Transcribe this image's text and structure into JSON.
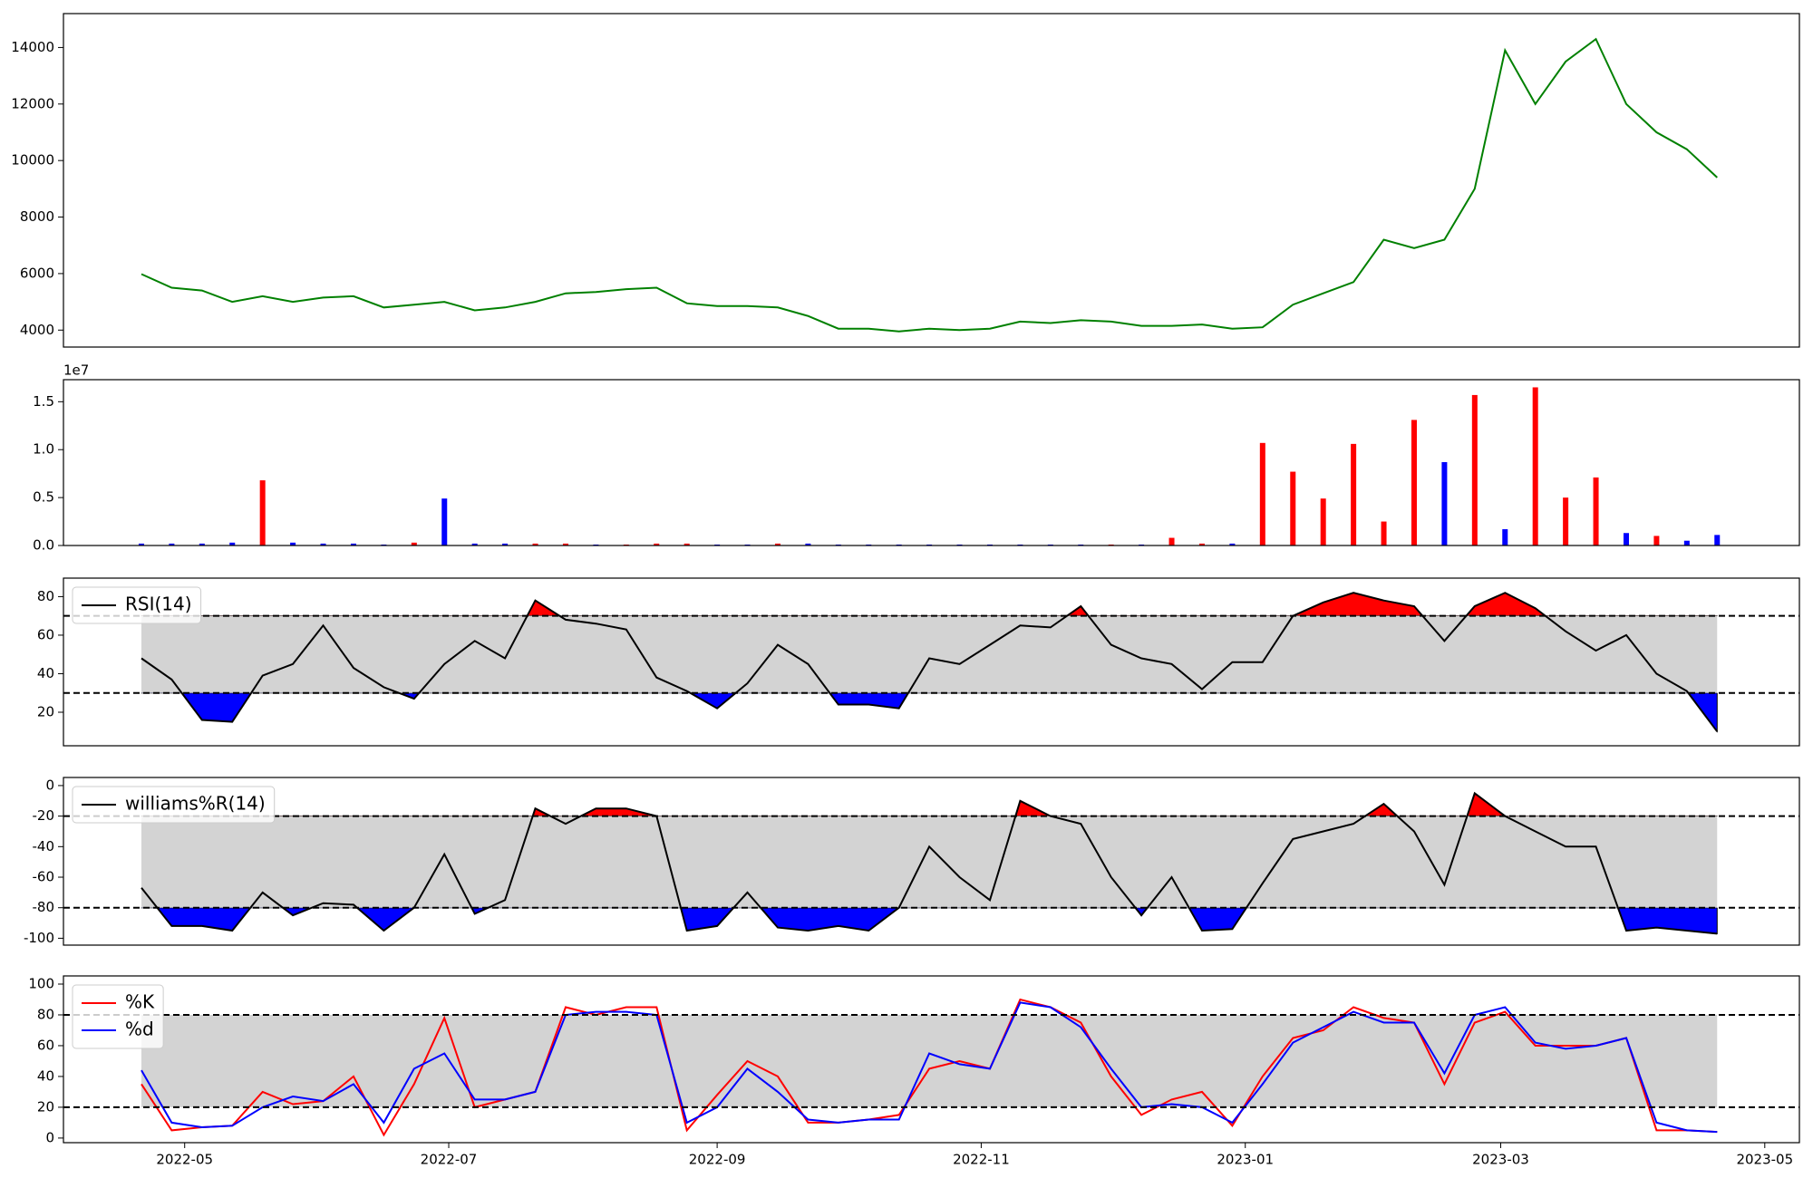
{
  "chart_data": [
    {
      "type": "line",
      "color": "green",
      "x": [
        -10,
        -3,
        4,
        11,
        18,
        25,
        32,
        39,
        46,
        53,
        60,
        67,
        74,
        81,
        88,
        95,
        102,
        109,
        116,
        123,
        130,
        137,
        144,
        151,
        158,
        165,
        172,
        179,
        186,
        193,
        200,
        207,
        214,
        221,
        228,
        235,
        242,
        249,
        256,
        263,
        270,
        277,
        284,
        291,
        298,
        305,
        312,
        319,
        326,
        333,
        340,
        347,
        354
      ],
      "values": [
        5980,
        5500,
        5400,
        5000,
        5200,
        5000,
        5150,
        5200,
        4800,
        4900,
        5000,
        4700,
        4800,
        5000,
        5300,
        5350,
        5450,
        5500,
        4950,
        4850,
        4850,
        4800,
        4500,
        4050,
        4050,
        3950,
        4050,
        4000,
        4050,
        4300,
        4250,
        4350,
        4300,
        4150,
        4150,
        4200,
        4050,
        4100,
        4900,
        5300,
        5700,
        7200,
        6900,
        7200,
        9000,
        13900,
        12000,
        13500,
        14300,
        12000,
        11000,
        10400,
        9400
      ],
      "xlim": [
        -28,
        373
      ],
      "ylim": [
        3400,
        15200
      ],
      "yticks": [
        4000,
        6000,
        8000,
        10000,
        12000,
        14000
      ]
    },
    {
      "type": "bar",
      "offset_label": "1e7",
      "x": [
        -10,
        -3,
        4,
        11,
        18,
        25,
        32,
        39,
        46,
        53,
        60,
        67,
        74,
        81,
        88,
        95,
        102,
        109,
        116,
        123,
        130,
        137,
        144,
        151,
        158,
        165,
        172,
        179,
        186,
        193,
        200,
        207,
        214,
        221,
        228,
        235,
        242,
        249,
        256,
        263,
        270,
        277,
        284,
        291,
        298,
        305,
        312,
        319,
        326,
        333,
        340,
        347,
        354
      ],
      "values": [
        0.02,
        0.02,
        0.02,
        0.03,
        0.68,
        0.03,
        0.02,
        0.02,
        0.01,
        0.03,
        0.49,
        0.02,
        0.02,
        0.02,
        0.02,
        0.01,
        0.01,
        0.02,
        0.02,
        0.01,
        0.01,
        0.02,
        0.02,
        0.01,
        0.01,
        0.01,
        0.01,
        0.01,
        0.01,
        0.01,
        0.01,
        0.01,
        0.01,
        0.01,
        0.08,
        0.02,
        0.02,
        1.07,
        0.77,
        0.49,
        1.06,
        0.25,
        1.31,
        0.87,
        1.57,
        0.17,
        1.65,
        0.5,
        0.71,
        0.13,
        0.1,
        0.05,
        0.11
      ],
      "colors": [
        "blue",
        "blue",
        "blue",
        "blue",
        "red",
        "blue",
        "blue",
        "blue",
        "blue",
        "red",
        "blue",
        "blue",
        "blue",
        "red",
        "red",
        "blue",
        "red",
        "red",
        "red",
        "blue",
        "blue",
        "red",
        "blue",
        "blue",
        "blue",
        "blue",
        "blue",
        "blue",
        "blue",
        "blue",
        "blue",
        "blue",
        "red",
        "blue",
        "red",
        "red",
        "blue",
        "red",
        "red",
        "red",
        "red",
        "red",
        "red",
        "blue",
        "red",
        "blue",
        "red",
        "red",
        "red",
        "blue",
        "red",
        "blue",
        "blue"
      ],
      "xlim": [
        -28,
        373
      ],
      "ylim": [
        0,
        1.73
      ],
      "yticks": [
        {
          "value": 0,
          "label": "0.0"
        },
        {
          "value": 0.5,
          "label": "0.5"
        },
        {
          "value": 1,
          "label": "1.0"
        },
        {
          "value": 1.5,
          "label": "1.5"
        }
      ]
    },
    {
      "type": "line",
      "x": [
        -10,
        -3,
        4,
        11,
        18,
        25,
        32,
        39,
        46,
        53,
        60,
        67,
        74,
        81,
        88,
        95,
        102,
        109,
        116,
        123,
        130,
        137,
        144,
        151,
        158,
        165,
        172,
        179,
        186,
        193,
        200,
        207,
        214,
        221,
        228,
        235,
        242,
        249,
        256,
        263,
        270,
        277,
        284,
        291,
        298,
        305,
        312,
        319,
        326,
        333,
        340,
        347,
        354
      ],
      "series": [
        {
          "name": "RSI(14)",
          "color": "black",
          "values": [
            48,
            37,
            16,
            15,
            39,
            45,
            65,
            43,
            33,
            27,
            45,
            57,
            48,
            78,
            68,
            66,
            63,
            38,
            31,
            22,
            35,
            55,
            45,
            24,
            24,
            22,
            48,
            45,
            55,
            65,
            64,
            75,
            55,
            48,
            45,
            32,
            46,
            46,
            70,
            77,
            82,
            78,
            75,
            57,
            75,
            82,
            74,
            62,
            52,
            60,
            40,
            31,
            10
          ]
        }
      ],
      "hlines": [
        30,
        70
      ],
      "band_color": "lightgray",
      "fill_above_color": "red",
      "fill_below_color": "blue",
      "xlim": [
        -28,
        373
      ],
      "ylim": [
        2.6,
        89.6
      ],
      "yticks": [
        20,
        40,
        60,
        80
      ]
    },
    {
      "type": "line",
      "x": [
        -10,
        -3,
        4,
        11,
        18,
        25,
        32,
        39,
        46,
        53,
        60,
        67,
        74,
        81,
        88,
        95,
        102,
        109,
        116,
        123,
        130,
        137,
        144,
        151,
        158,
        165,
        172,
        179,
        186,
        193,
        200,
        207,
        214,
        221,
        228,
        235,
        242,
        249,
        256,
        263,
        270,
        277,
        284,
        291,
        298,
        305,
        312,
        319,
        326,
        333,
        340,
        347,
        354
      ],
      "series": [
        {
          "name": "williams%R(14)",
          "color": "black",
          "values": [
            -67,
            -92,
            -92,
            -95,
            -70,
            -85,
            -77,
            -78,
            -95,
            -80,
            -45,
            -84,
            -75,
            -15,
            -25,
            -15,
            -15,
            -20,
            -95,
            -92,
            -70,
            -93,
            -95,
            -92,
            -95,
            -80,
            -40,
            -60,
            -75,
            -10,
            -20,
            -25,
            -60,
            -85,
            -60,
            -95,
            -94,
            -64,
            -35,
            -30,
            -25,
            -12,
            -30,
            -65,
            -5,
            -20,
            -30,
            -40,
            -40,
            -95,
            -93,
            -95,
            -97
          ]
        }
      ],
      "hlines": [
        -80,
        -20
      ],
      "band_color": "lightgray",
      "fill_above_color": "red",
      "fill_below_color": "blue",
      "xlim": [
        -28,
        373
      ],
      "ylim": [
        -104.5,
        5.3
      ],
      "yticks": [
        -100,
        -80,
        -60,
        -40,
        -20,
        0
      ]
    },
    {
      "type": "line",
      "x": [
        -10,
        -3,
        4,
        11,
        18,
        25,
        32,
        39,
        46,
        53,
        60,
        67,
        74,
        81,
        88,
        95,
        102,
        109,
        116,
        123,
        130,
        137,
        144,
        151,
        158,
        165,
        172,
        179,
        186,
        193,
        200,
        207,
        214,
        221,
        228,
        235,
        242,
        249,
        256,
        263,
        270,
        277,
        284,
        291,
        298,
        305,
        312,
        319,
        326,
        333,
        340,
        347,
        354
      ],
      "series": [
        {
          "name": "%K",
          "color": "red",
          "values": [
            35,
            5,
            7,
            8,
            30,
            22,
            24,
            40,
            2,
            35,
            78,
            20,
            25,
            30,
            85,
            80,
            85,
            85,
            5,
            28,
            50,
            40,
            10,
            10,
            12,
            15,
            45,
            50,
            45,
            90,
            85,
            75,
            40,
            15,
            25,
            30,
            8,
            40,
            65,
            70,
            85,
            78,
            75,
            35,
            75,
            82,
            60,
            60,
            60,
            65,
            5,
            5,
            4
          ]
        },
        {
          "name": "%d",
          "color": "blue",
          "values": [
            44,
            10,
            7,
            8,
            20,
            27,
            24,
            35,
            10,
            45,
            55,
            25,
            25,
            30,
            80,
            82,
            82,
            80,
            10,
            20,
            45,
            30,
            12,
            10,
            12,
            12,
            55,
            48,
            45,
            88,
            85,
            72,
            45,
            20,
            22,
            20,
            10,
            35,
            62,
            72,
            82,
            75,
            75,
            42,
            80,
            85,
            62,
            58,
            60,
            65,
            10,
            5,
            4
          ]
        }
      ],
      "hlines": [
        20,
        80
      ],
      "band_color": "lightgray",
      "xlim": [
        -28,
        373
      ],
      "ylim": [
        -3,
        105.3
      ],
      "yticks": [
        0,
        20,
        40,
        60,
        80,
        100
      ],
      "xticks": [
        {
          "value": 0,
          "label": "2022-05"
        },
        {
          "value": 61,
          "label": "2022-07"
        },
        {
          "value": 123,
          "label": "2022-09"
        },
        {
          "value": 184,
          "label": "2022-11"
        },
        {
          "value": 245,
          "label": "2023-01"
        },
        {
          "value": 304,
          "label": "2023-03"
        },
        {
          "value": 365,
          "label": "2023-05"
        }
      ]
    }
  ]
}
